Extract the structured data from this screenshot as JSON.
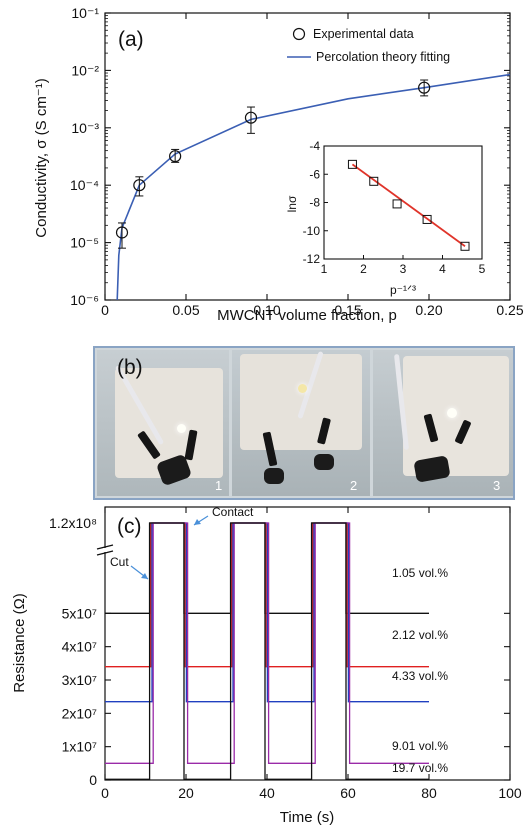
{
  "chart_data": [
    {
      "panel": "(a)",
      "type": "scatter",
      "xlabel": "MWCNT volume fraction, p",
      "ylabel": "Conductivity, σ (S cm⁻¹)",
      "xlim": [
        0,
        0.25
      ],
      "ylim_log10": [
        -6,
        -1
      ],
      "y_scale": "log",
      "x_ticks": [
        "0",
        "0.05",
        "0.10",
        "0.15",
        "0.20",
        "0.25"
      ],
      "y_ticks": [
        "10⁻⁶",
        "10⁻⁵",
        "10⁻⁴",
        "10⁻³",
        "10⁻²",
        "10⁻¹"
      ],
      "legend_position": "top-right",
      "series": [
        {
          "name": "Experimental data",
          "marker": "open-circle",
          "x": [
            0.0105,
            0.0212,
            0.0433,
            0.0901,
            0.197
          ],
          "y": [
            1.5e-05,
            0.0001,
            0.00032,
            0.0015,
            0.005
          ],
          "err_low": [
            8e-06,
            6.5e-05,
            0.00025,
            0.0008,
            0.0036
          ],
          "err_high": [
            2.2e-05,
            0.00014,
            0.00042,
            0.0023,
            0.0068
          ]
        },
        {
          "name": "Percolation theory fitting",
          "style": "line",
          "color": "#3b5fb4",
          "x": [
            0.0075,
            0.0085,
            0.0105,
            0.0212,
            0.0433,
            0.0901,
            0.15,
            0.197,
            0.25
          ],
          "y": [
            1e-06,
            6e-06,
            1.8e-05,
            0.0001,
            0.00035,
            0.0014,
            0.0032,
            0.005,
            0.0085
          ]
        }
      ]
    },
    {
      "panel": "inset",
      "type": "scatter",
      "xlabel": "p⁻¹ᐟ³",
      "ylabel": "lnσ",
      "xlim": [
        1,
        5
      ],
      "ylim": [
        -12,
        -4
      ],
      "x_ticks": [
        "1",
        "2",
        "3",
        "4",
        "5"
      ],
      "y_ticks": [
        "-4",
        "-6",
        "-8",
        "-10",
        "-12"
      ],
      "series": [
        {
          "marker": "open-square",
          "x": [
            1.72,
            2.26,
            2.85,
            3.61,
            4.57
          ],
          "y": [
            -5.3,
            -6.5,
            -8.1,
            -9.2,
            -11.1
          ]
        },
        {
          "style": "line",
          "color": "#e0342a",
          "x": [
            1.72,
            4.57
          ],
          "y": [
            -5.3,
            -11.1
          ]
        }
      ]
    },
    {
      "panel": "(c)",
      "type": "line",
      "xlabel": "Time (s)",
      "ylabel": "Resistance (Ω)",
      "xlim": [
        0,
        100
      ],
      "ylim": [
        0,
        60000000
      ],
      "y_break_label": "1.2x10⁸",
      "x_ticks": [
        "0",
        "20",
        "40",
        "60",
        "80",
        "100"
      ],
      "y_ticks": [
        "0",
        "1x10⁷",
        "2x10⁷",
        "3x10⁷",
        "4x10⁷",
        "5x10⁷"
      ],
      "annotations": [
        "Contact",
        "Cut"
      ],
      "series": [
        {
          "name": "1.05 vol.%",
          "color": "#111111",
          "baseline": 50000000,
          "shift_s": 0.0
        },
        {
          "name": "2.12 vol.%",
          "color": "#e02020",
          "baseline": 34000000,
          "shift_s": 0.3
        },
        {
          "name": "4.33 vol.%",
          "color": "#2040c0",
          "baseline": 23500000,
          "shift_s": 0.6
        },
        {
          "name": "9.01 vol.%",
          "color": "#9a2aa8",
          "baseline": 5000000,
          "shift_s": 0.9
        },
        {
          "name": "19.7 vol.%",
          "color": "#111111",
          "baseline": 200000,
          "shift_s": 0.0
        }
      ],
      "contact_intervals_s": [
        [
          11,
          19.5
        ],
        [
          31,
          39.5
        ],
        [
          51,
          59.5
        ]
      ]
    }
  ],
  "labels": {
    "panel_b": "(b)",
    "photo_numbers": [
      "1",
      "2",
      "3"
    ]
  }
}
